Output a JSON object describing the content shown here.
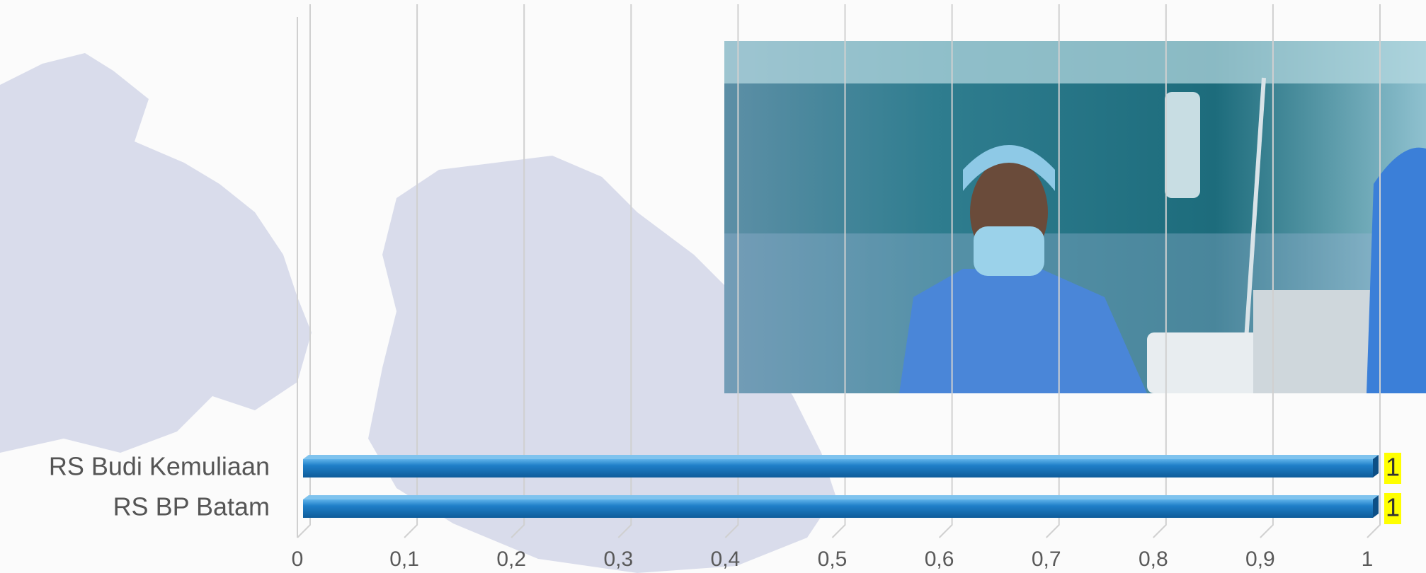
{
  "chart_data": {
    "type": "bar",
    "orientation": "horizontal",
    "categories": [
      "RS Budi Kemuliaan",
      "RS BP Batam"
    ],
    "values": [
      1,
      1
    ],
    "color": "#1f7fc8",
    "xlim": [
      0,
      1
    ],
    "xticks": [
      0,
      {
        "value": 0.1,
        "label": "0,1"
      },
      {
        "value": 0.2,
        "label": "0,2"
      },
      {
        "value": 0.3,
        "label": "0,3"
      },
      {
        "value": 0.4,
        "label": "0,4"
      },
      {
        "value": 0.5,
        "label": "0,5"
      },
      {
        "value": 0.6,
        "label": "0,6"
      },
      {
        "value": 0.7,
        "label": "0,7"
      },
      {
        "value": 0.8,
        "label": "0,8"
      },
      {
        "value": 0.9,
        "label": "0,9"
      },
      1
    ],
    "grid": true,
    "data_label_background": "#ffff00"
  }
}
